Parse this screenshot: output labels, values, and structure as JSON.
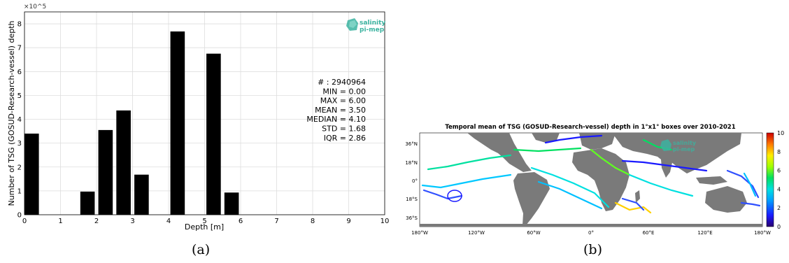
{
  "chart_data": [
    {
      "type": "bar",
      "xlabel": "Depth [m]",
      "ylabel": "Number of TSG (GOSUD-Research-vessel) depth",
      "y_multiplier": "×10^5",
      "xlim": [
        0,
        10
      ],
      "ylim": [
        0,
        850000
      ],
      "xticks": [
        "0",
        "1",
        "2",
        "3",
        "4",
        "5",
        "6",
        "7",
        "8",
        "9",
        "10"
      ],
      "yticks": [
        "0",
        "1",
        "2",
        "3",
        "4",
        "5",
        "6",
        "7",
        "8"
      ],
      "grid": true,
      "bars": [
        {
          "x": 0.2,
          "value": 340000
        },
        {
          "x": 1.75,
          "value": 97000
        },
        {
          "x": 2.25,
          "value": 355000
        },
        {
          "x": 2.75,
          "value": 437000
        },
        {
          "x": 3.25,
          "value": 168000
        },
        {
          "x": 4.25,
          "value": 768000
        },
        {
          "x": 5.25,
          "value": 675000
        },
        {
          "x": 5.75,
          "value": 93000
        }
      ],
      "stats_lines": [
        "# : 2940964",
        "MIN = 0.00",
        "MAX =  6.00",
        "MEAN = 3.50",
        "MEDIAN = 4.10",
        "STD = 1.68",
        "IQR = 2.86"
      ],
      "logo_line1": "salinity",
      "logo_line2": "pi-mep"
    },
    {
      "type": "heatmap",
      "title": "Temporal mean of TSG (GOSUD-Research-vessel) depth in 1°x1° boxes over 2010-2021",
      "colorbar_range": [
        0,
        10
      ],
      "colorbar_ticks": [
        "10",
        "8",
        "6",
        "4",
        "2",
        "0"
      ],
      "lat_ticks": [
        "36°N",
        "18°N",
        "0°",
        "18°S",
        "36°S"
      ],
      "lon_ticks": [
        "180°W",
        "120°W",
        "60°W",
        "0°",
        "60°E",
        "120°E",
        "180°W"
      ],
      "logo_line1": "salinity",
      "logo_line2": "pi-mep"
    }
  ],
  "captions": {
    "left": "(a)",
    "right": "(b)"
  },
  "colors": {
    "bar": "#000000",
    "land": "#7a7a7a",
    "logo": "#3bb3a0"
  }
}
